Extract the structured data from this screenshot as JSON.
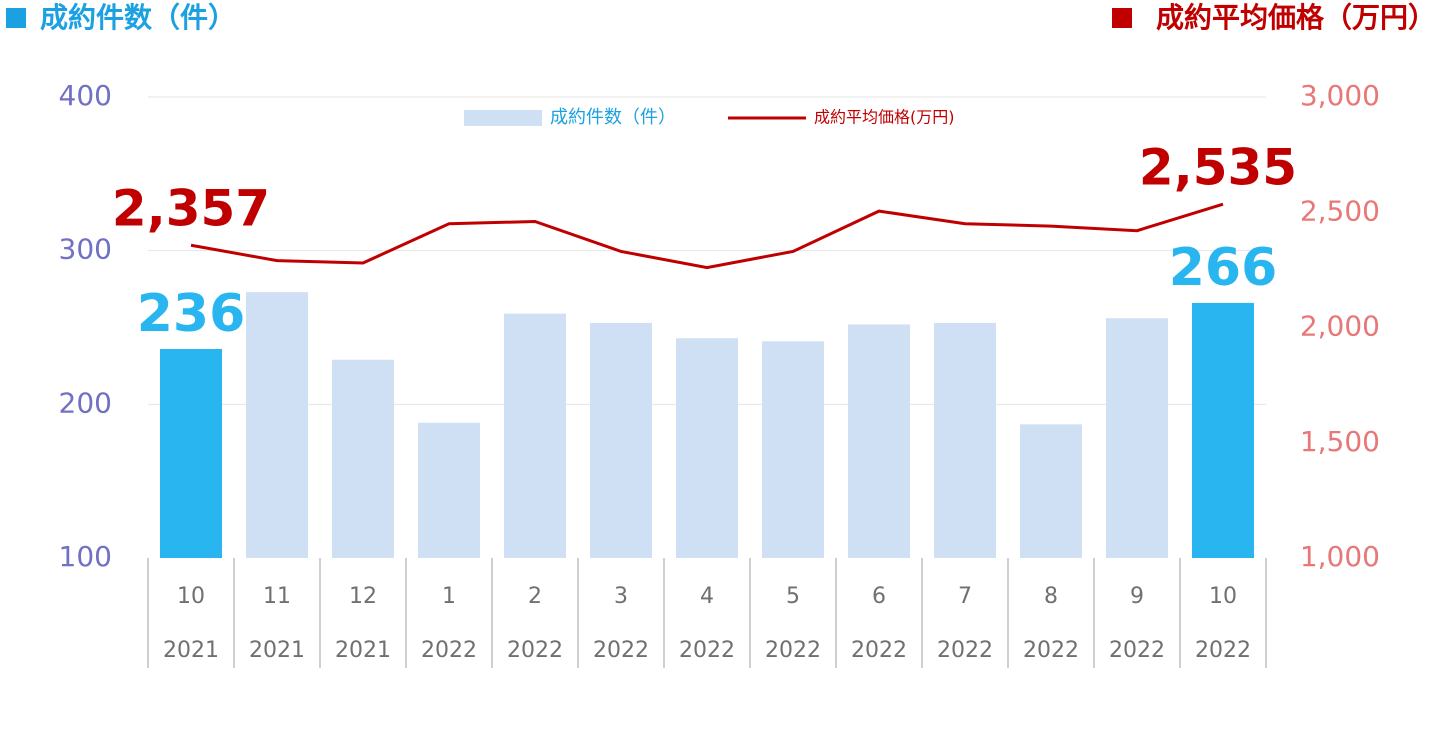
{
  "chart_data": {
    "type": "bar_line",
    "title_left": "成約件数（件）",
    "title_right": "成約平均価格（万円）",
    "categories": [
      "10",
      "11",
      "12",
      "1",
      "2",
      "3",
      "4",
      "5",
      "6",
      "7",
      "8",
      "9",
      "10"
    ],
    "years": [
      "2021",
      "2021",
      "2021",
      "2022",
      "2022",
      "2022",
      "2022",
      "2022",
      "2022",
      "2022",
      "2022",
      "2022",
      "2022"
    ],
    "series": [
      {
        "name": "成約件数（件）",
        "kind": "bar",
        "color": "#cfe0f5",
        "highlight_color": "#29b6f0",
        "highlight": [
          true,
          false,
          false,
          false,
          false,
          false,
          false,
          false,
          false,
          false,
          false,
          false,
          true
        ],
        "values": [
          236,
          273,
          229,
          188,
          259,
          253,
          243,
          241,
          252,
          253,
          187,
          256,
          266
        ],
        "value_labels": [
          "236",
          null,
          null,
          null,
          null,
          null,
          null,
          null,
          null,
          null,
          null,
          null,
          "266"
        ]
      },
      {
        "name": "成約平均価格(万円)",
        "kind": "line",
        "axis": "y2",
        "color": "#c00000",
        "values": [
          2357,
          2290,
          2280,
          2450,
          2460,
          2330,
          2260,
          2330,
          2505,
          2450,
          2440,
          2420,
          2535
        ],
        "value_labels": [
          "2,357",
          null,
          null,
          null,
          null,
          null,
          null,
          null,
          null,
          null,
          null,
          null,
          "2,535"
        ]
      }
    ],
    "ylim": [
      100,
      400
    ],
    "yticks": [
      100,
      200,
      300,
      400
    ],
    "y2lim": [
      1000,
      3000
    ],
    "y2ticks": [
      {
        "value": 1000,
        "label": "1,000"
      },
      {
        "value": 1500,
        "label": "1,500"
      },
      {
        "value": 2000,
        "label": "2,000"
      },
      {
        "value": 2500,
        "label": "2,500"
      },
      {
        "value": 3000,
        "label": "3,000"
      }
    ],
    "grid": true,
    "legend": "top"
  }
}
